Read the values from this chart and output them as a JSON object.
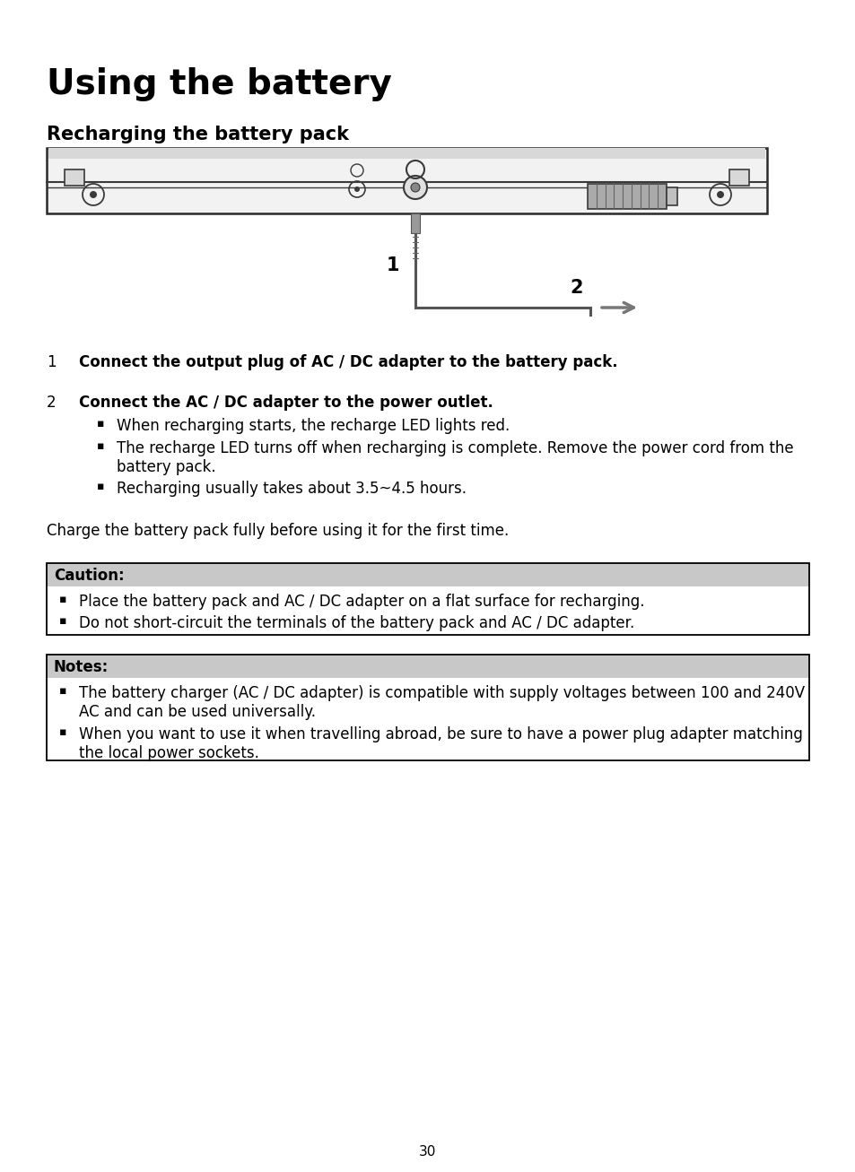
{
  "title": "Using the battery",
  "subtitle": "Recharging the battery pack",
  "bg_color": "#ffffff",
  "text_color": "#000000",
  "page_number": "30",
  "step1_label": "1",
  "step1_bold": "Connect the output plug of AC / DC adapter to the battery pack.",
  "step2_label": "2",
  "step2_bold": "Connect the AC / DC adapter to the power outlet.",
  "step2_bullets": [
    "When recharging starts, the recharge LED lights red.",
    "The recharge LED turns off when recharging is complete. Remove the power cord from the\nbattery pack.",
    "Recharging usually takes about 3.5~4.5 hours."
  ],
  "charge_note": "Charge the battery pack fully before using it for the first time.",
  "caution_header": "Caution:",
  "caution_bullets": [
    "Place the battery pack and AC / DC adapter on a flat surface for recharging.",
    "Do not short-circuit the terminals of the battery pack and AC / DC adapter."
  ],
  "notes_header": "Notes:",
  "notes_bullets": [
    "The battery charger (AC / DC adapter) is compatible with supply voltages between 100 and 240V\nAC and can be used universally.",
    "When you want to use it when travelling abroad, be sure to have a power plug adapter matching\nthe local power sockets."
  ],
  "diagram_label1": "1",
  "diagram_label2": "2",
  "caution_bg": "#c8c8c8",
  "notes_bg": "#c8c8c8",
  "box_border": "#000000"
}
